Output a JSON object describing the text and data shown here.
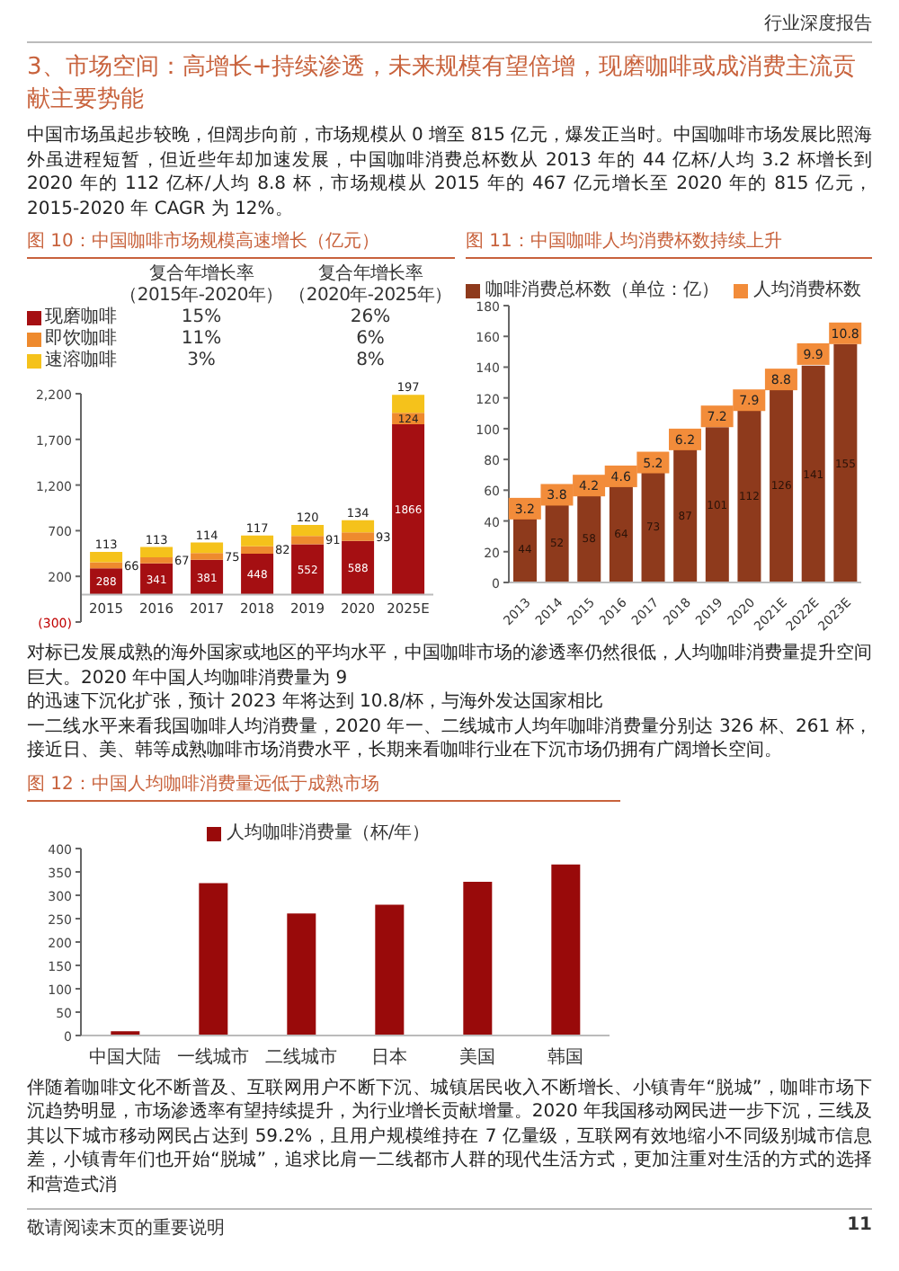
{
  "chart_data": [
    {
      "type": "other",
      "title": "3、市场空间：高增长+持续渗透，未来规模有望倍增，现磨咖啡或成消费主流贡献主要势能",
      "annotations": [
        "行业深度报告",
        "中国市场虽起步较晚，但阔步向前，市场规模从 0 增至 815 亿元，爆发正当时。中国咖啡市场发展比照海外虽进程短暂，但近些年却加速发展，中国咖啡消费总杯数从 2013 年的 44 亿杯/人均 3.2 杯增长到 2020 年的 112 亿杯/人均 8.8 杯，市场规模从 2015 年的 467 亿元增长至 2020 年的 815 亿元，2015-2020 年 CAGR 为 12%。"
      ]
    },
    {
      "type": "bar",
      "stacked": true,
      "title": "图 10：中国咖啡市场规模高速增长（亿元）",
      "categories": [
        "2015",
        "2016",
        "2017",
        "2018",
        "2019",
        "2020",
        "2025E"
      ],
      "series": [
        {
          "name": "现磨咖啡",
          "color": "#a50f12",
          "values": [
            288,
            341,
            381,
            448,
            552,
            588,
            1866
          ]
        },
        {
          "name": "即饮咖啡",
          "color": "#ee8a2e",
          "values": [
            66,
            67,
            75,
            82,
            91,
            93,
            124
          ]
        },
        {
          "name": "速溶咖啡",
          "color": "#f5c21b",
          "values": [
            113,
            113,
            114,
            117,
            120,
            134,
            197
          ]
        }
      ],
      "ylim": [
        -300,
        2200
      ],
      "yticks": [
        {
          "value": -300,
          "label": "(300)"
        },
        200,
        700,
        {
          "value": 1200,
          "label": "1,200"
        },
        {
          "value": 1700,
          "label": "1,700"
        },
        {
          "value": 2200,
          "label": "2,200"
        }
      ],
      "data_labels": true,
      "legend": "top",
      "annotations": [
        "复合年增长率",
        "（2015年-2020年）",
        "复合年增长率",
        "（2020年-2025年）",
        "15%",
        "26%",
        "11%",
        "6%",
        "3%",
        "8%"
      ]
    },
    {
      "type": "bar",
      "title": "图 11：中国咖啡人均消费杯数持续上升",
      "categories": [
        "2013",
        "2014",
        "2015",
        "2016",
        "2017",
        "2018",
        "2019",
        "2020",
        "2021E",
        "2022E",
        "2023E"
      ],
      "series": [
        {
          "name": "咖啡消费总杯数（单位：亿）",
          "color": "#8e3a1c",
          "values": [
            44,
            52,
            58,
            64,
            73,
            87,
            101,
            112,
            126,
            141,
            155
          ]
        },
        {
          "name": "人均消费杯数",
          "type": "scatter",
          "axis": "y2",
          "color": "#f28c3a",
          "values": [
            3.2,
            3.8,
            4.2,
            4.6,
            5.2,
            6.2,
            7.2,
            7.9,
            8.8,
            9.9,
            10.8
          ]
        }
      ],
      "ylim": [
        0,
        180
      ],
      "yticks": [
        0,
        20,
        40,
        60,
        80,
        100,
        120,
        140,
        160,
        180
      ],
      "y2lim": [
        0,
        12
      ],
      "tick_labels": "xy",
      "marker": "square",
      "data_labels": true,
      "legend": "top"
    },
    {
      "type": "other",
      "annotations": [
        "对标已发展成熟的海外国家或地区的平均水平，中国咖啡市场的渗透率仍然很低，人均咖啡消费量提升空间巨大。2020 年中国人均咖啡消费量为 9",
        "的迅速下沉化扩张，预计 2023 年将达到 10.8/杯，与海外发达国家相比",
        "一二线水平来看我国咖啡人均消费量，2020 年一、二线城市人均年咖啡消费量分别达 326 杯、261 杯，接近日、美、韩等成熟咖啡市场消费水平，长期来看咖啡行业在下沉市场仍拥有广阔增长空间。"
      ]
    },
    {
      "type": "bar",
      "title": "图 12：中国人均咖啡消费量远低于成熟市场",
      "categories": [
        "中国大陆",
        "一线城市",
        "二线城市",
        "日本",
        "美国",
        "韩国"
      ],
      "series": [
        {
          "name": "人均咖啡消费量（杯/年）",
          "color": "#990a0a",
          "values": [
            9,
            326,
            261,
            280,
            329,
            366
          ]
        }
      ],
      "ylim": [
        0,
        400
      ],
      "yticks": [
        0,
        50,
        100,
        150,
        200,
        250,
        300,
        350,
        400
      ],
      "legend": "top"
    },
    {
      "type": "other",
      "annotations": [
        "伴随着咖啡文化不断普及、互联网用户不断下沉、城镇居民收入不断增长、小镇青年“脱城”，咖啡市场下沉趋势明显，市场渗透率有望持续提升，为行业增长贡献增量。2020 年我国移动网民进一步下沉，三线及其以下城市移动网民占达到 59.2%，且用户规模维持在 7 亿量级，互联网有效地缩小不同级别城市信息差，小镇青年们也开始“脱城”，追求比肩一二线都市人群的现代生活方式，更加注重对生活的方式的选择和营造式消",
        "敬请阅读末页的重要说明",
        "11"
      ]
    }
  ]
}
